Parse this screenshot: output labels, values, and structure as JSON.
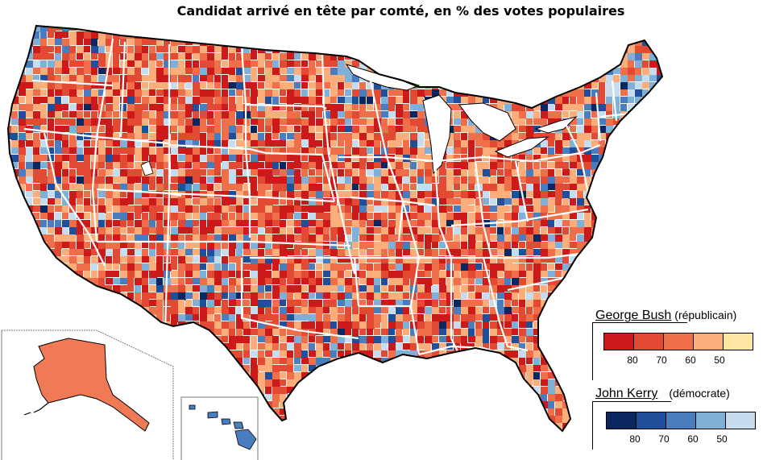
{
  "title": "Candidat arrivé en tête par comté, en % des votes populaires",
  "palette": {
    "rep": [
      "#cc1a1a",
      "#e34a33",
      "#ef6f4a",
      "#fcae7a",
      "#fee5a3"
    ],
    "dem": [
      "#0a2760",
      "#1f4f9a",
      "#4a7dbd",
      "#7fb0d8",
      "#c6dcef"
    ],
    "state_border": "#ffffff",
    "coast": "#000000"
  },
  "legend": {
    "bush": {
      "name": "George Bush",
      "affiliation": "(républicain)",
      "ticks": [
        "80",
        "70",
        "60",
        "50"
      ]
    },
    "kerry": {
      "name": "John Kerry",
      "affiliation": "(démocrate)",
      "ticks": [
        "80",
        "70",
        "60",
        "50"
      ]
    }
  },
  "insets": {
    "alaska_color": "#ef7a55",
    "hawaii_color": "#4a7dbd"
  }
}
